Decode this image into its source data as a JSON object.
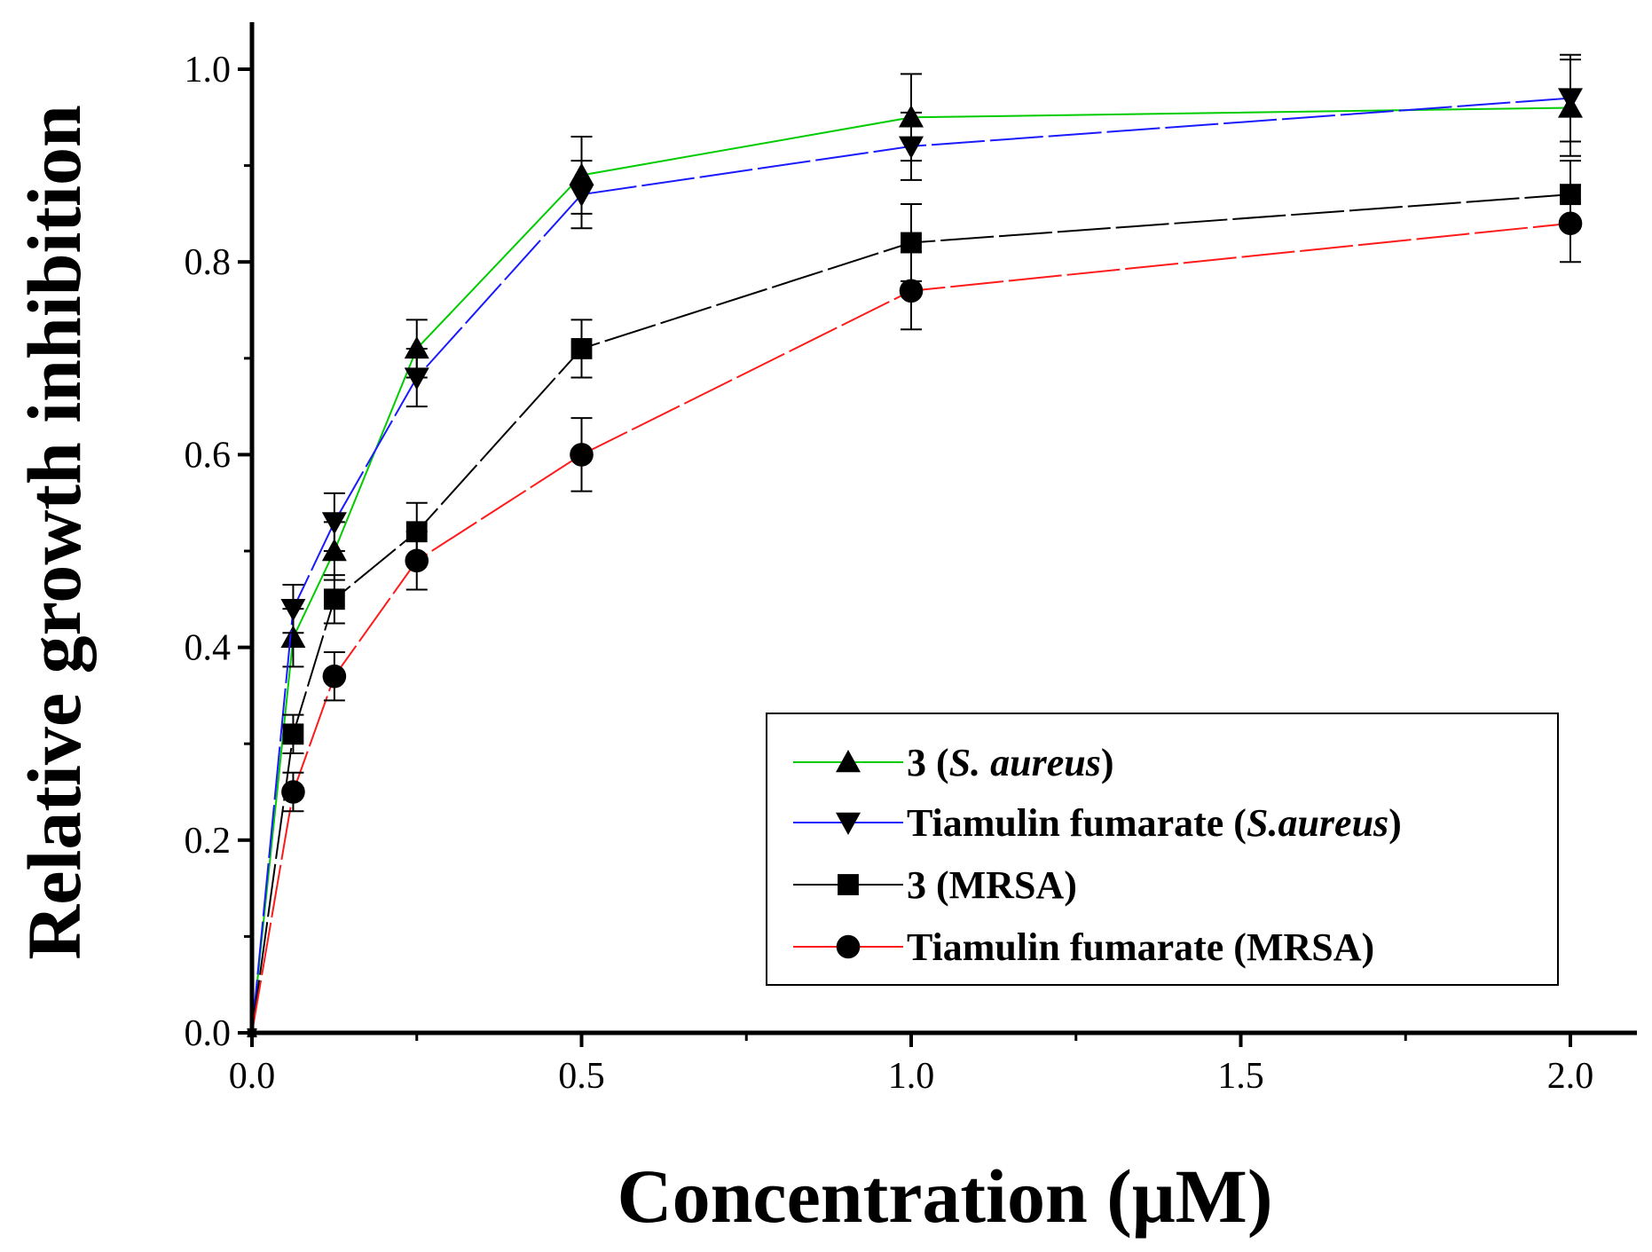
{
  "chart_data": {
    "type": "line",
    "title": "",
    "xlabel": "Concentration (μM)",
    "ylabel": "Relative growth inhibition",
    "xlim": [
      0,
      2.1
    ],
    "ylim": [
      0,
      1.05
    ],
    "xticks": [
      0.0,
      0.5,
      1.0,
      1.5,
      2.0
    ],
    "xtick_labels": [
      "0.0",
      "0.5",
      "1.0",
      "1.5",
      "2.0"
    ],
    "yticks": [
      0.0,
      0.2,
      0.4,
      0.6,
      0.8,
      1.0
    ],
    "ytick_labels": [
      "0.0",
      "0.2",
      "0.4",
      "0.6",
      "0.8",
      "1.0"
    ],
    "grid": false,
    "legend_position": "bottom-right",
    "x": [
      0,
      0.0625,
      0.125,
      0.25,
      0.5,
      1.0,
      2.0
    ],
    "series": [
      {
        "name": "3 (S. aureus)",
        "legend_prefix": "3 (",
        "legend_italic": "S. aureus",
        "legend_suffix": ")",
        "color": "#00cc00",
        "dash": "solid",
        "marker": "triangle-up",
        "values": [
          0.0,
          0.41,
          0.5,
          0.71,
          0.89,
          0.95,
          0.96
        ],
        "errors": [
          0.0,
          0.03,
          0.03,
          0.03,
          0.04,
          0.045,
          0.05
        ]
      },
      {
        "name": "Tiamulin fumarate (S.aureus)",
        "legend_prefix": "Tiamulin fumarate (",
        "legend_italic": "S.aureus",
        "legend_suffix": ")",
        "color": "#1a1aff",
        "dash": "dashed",
        "marker": "triangle-down",
        "values": [
          0.0,
          0.44,
          0.53,
          0.68,
          0.87,
          0.92,
          0.97
        ],
        "errors": [
          0.0,
          0.025,
          0.03,
          0.03,
          0.035,
          0.035,
          0.045
        ]
      },
      {
        "name": "3 (MRSA)",
        "legend_prefix": "3 (MRSA)",
        "legend_italic": "",
        "legend_suffix": "",
        "color": "#000000",
        "dash": "dashed",
        "marker": "square",
        "values": [
          0.0,
          0.31,
          0.45,
          0.52,
          0.71,
          0.82,
          0.87
        ],
        "errors": [
          0.0,
          0.02,
          0.025,
          0.03,
          0.03,
          0.04,
          0.035
        ]
      },
      {
        "name": "Tiamulin fumarate (MRSA)",
        "legend_prefix": "Tiamulin fumarate (MRSA)",
        "legend_italic": "",
        "legend_suffix": "",
        "color": "#ff1a1a",
        "dash": "dashed",
        "marker": "circle",
        "values": [
          0.0,
          0.25,
          0.37,
          0.49,
          0.6,
          0.77,
          0.84
        ],
        "errors": [
          0.0,
          0.02,
          0.025,
          0.03,
          0.038,
          0.04,
          0.04
        ]
      }
    ]
  }
}
